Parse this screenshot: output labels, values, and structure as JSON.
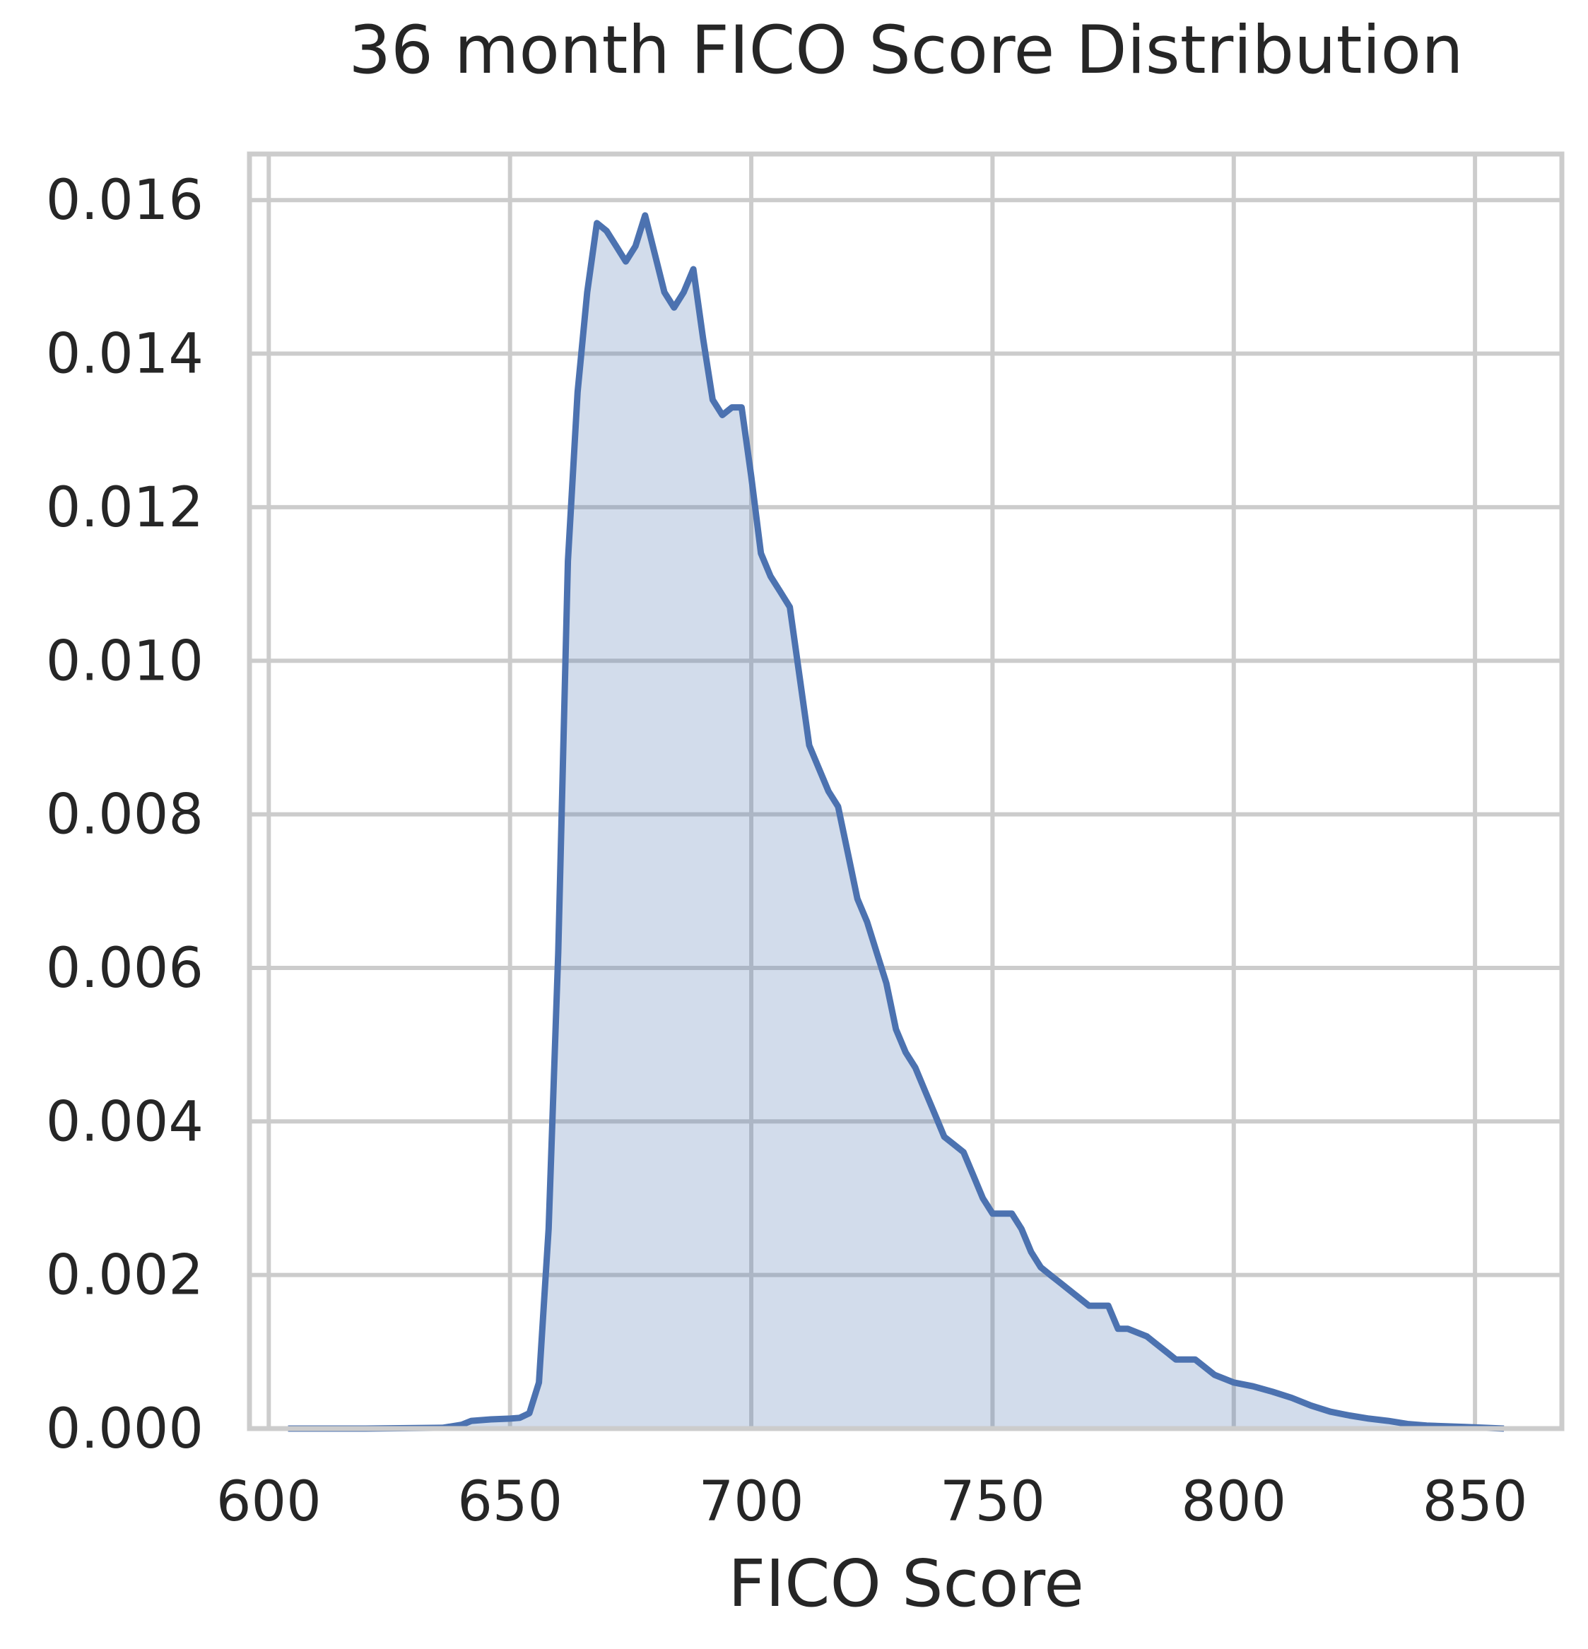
{
  "chart_data": {
    "type": "area",
    "title": "36 month FICO Score Distribution",
    "xlabel": "FICO Score",
    "ylabel": "",
    "xlim": [
      596,
      868
    ],
    "ylim": [
      0,
      0.0166
    ],
    "x_ticks": [
      600,
      650,
      700,
      750,
      800,
      850
    ],
    "x_tick_labels": [
      "600",
      "650",
      "700",
      "750",
      "800",
      "850"
    ],
    "y_ticks": [
      0,
      0.002,
      0.004,
      0.006,
      0.008,
      0.01,
      0.012,
      0.014,
      0.016
    ],
    "y_tick_labels": [
      "0.000",
      "0.002",
      "0.004",
      "0.006",
      "0.008",
      "0.010",
      "0.012",
      "0.014",
      "0.016"
    ],
    "grid": true,
    "colors": {
      "line": "#4c72b0",
      "fill": "#4c72b0",
      "grid": "#cccccc",
      "text": "#262626"
    },
    "series": [
      {
        "points": [
          [
            604,
            0.0
          ],
          [
            620,
            0.0
          ],
          [
            636,
            1e-05
          ],
          [
            640,
            5e-05
          ],
          [
            642,
            0.0001
          ],
          [
            646,
            0.00012
          ],
          [
            650,
            0.00013
          ],
          [
            652,
            0.00014
          ],
          [
            654,
            0.0002
          ],
          [
            656,
            0.0006
          ],
          [
            658,
            0.0026
          ],
          [
            660,
            0.0062
          ],
          [
            662,
            0.0113
          ],
          [
            664,
            0.0135
          ],
          [
            666,
            0.0148
          ],
          [
            668,
            0.0157
          ],
          [
            670,
            0.0156
          ],
          [
            672,
            0.0154
          ],
          [
            674,
            0.0152
          ],
          [
            676,
            0.0154
          ],
          [
            678,
            0.0158
          ],
          [
            680,
            0.0153
          ],
          [
            682,
            0.0148
          ],
          [
            684,
            0.0146
          ],
          [
            686,
            0.0148
          ],
          [
            688,
            0.0151
          ],
          [
            690,
            0.0142
          ],
          [
            692,
            0.0134
          ],
          [
            694,
            0.0132
          ],
          [
            696,
            0.0133
          ],
          [
            698,
            0.0133
          ],
          [
            700,
            0.0124
          ],
          [
            702,
            0.0114
          ],
          [
            704,
            0.0111
          ],
          [
            706,
            0.0109
          ],
          [
            708,
            0.0107
          ],
          [
            710,
            0.0098
          ],
          [
            712,
            0.0089
          ],
          [
            714,
            0.0086
          ],
          [
            716,
            0.0083
          ],
          [
            718,
            0.0081
          ],
          [
            720,
            0.0075
          ],
          [
            722,
            0.0069
          ],
          [
            724,
            0.0066
          ],
          [
            726,
            0.0062
          ],
          [
            728,
            0.0058
          ],
          [
            730,
            0.0052
          ],
          [
            732,
            0.0049
          ],
          [
            734,
            0.0047
          ],
          [
            736,
            0.0044
          ],
          [
            738,
            0.0041
          ],
          [
            740,
            0.0038
          ],
          [
            742,
            0.0037
          ],
          [
            744,
            0.0036
          ],
          [
            746,
            0.0033
          ],
          [
            748,
            0.003
          ],
          [
            750,
            0.0028
          ],
          [
            752,
            0.0028
          ],
          [
            754,
            0.0028
          ],
          [
            756,
            0.0026
          ],
          [
            758,
            0.0023
          ],
          [
            760,
            0.0021
          ],
          [
            762,
            0.002
          ],
          [
            764,
            0.0019
          ],
          [
            766,
            0.0018
          ],
          [
            768,
            0.0017
          ],
          [
            770,
            0.0016
          ],
          [
            774,
            0.0016
          ],
          [
            776,
            0.0013
          ],
          [
            778,
            0.0013
          ],
          [
            782,
            0.0012
          ],
          [
            784,
            0.0011
          ],
          [
            786,
            0.001
          ],
          [
            788,
            0.0009
          ],
          [
            792,
            0.0009
          ],
          [
            796,
            0.0007
          ],
          [
            800,
            0.0006
          ],
          [
            804,
            0.00055
          ],
          [
            808,
            0.00048
          ],
          [
            812,
            0.0004
          ],
          [
            816,
            0.0003
          ],
          [
            820,
            0.00022
          ],
          [
            824,
            0.00017
          ],
          [
            828,
            0.00013
          ],
          [
            832,
            0.0001
          ],
          [
            836,
            6e-05
          ],
          [
            840,
            4e-05
          ],
          [
            848,
            2e-05
          ],
          [
            856,
            0.0
          ]
        ]
      }
    ]
  }
}
